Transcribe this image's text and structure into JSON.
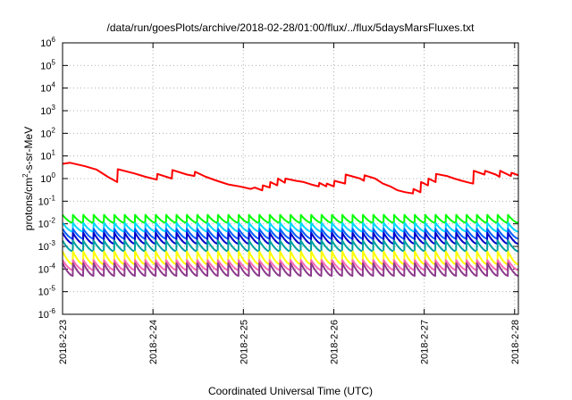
{
  "chart_data": {
    "type": "line",
    "title": "/data/run/goesPlots/archive/2018-02-28/01:00/flux/../flux/5daysMarsFluxes.txt",
    "xlabel": "Coordinated Universal Time (UTC)",
    "ylabel": {
      "prefix": "protons/cm",
      "sup": "2",
      "suffix": "-s-sr-MeV"
    },
    "yscale": "log",
    "ylim": [
      1e-06,
      1000000.0
    ],
    "y_ticks": [
      {
        "exp": -6
      },
      {
        "exp": -5
      },
      {
        "exp": -4
      },
      {
        "exp": -3
      },
      {
        "exp": -2
      },
      {
        "exp": -1
      },
      {
        "exp": 0
      },
      {
        "exp": 1
      },
      {
        "exp": 2
      },
      {
        "exp": 3
      },
      {
        "exp": 4
      },
      {
        "exp": 5
      },
      {
        "exp": 6
      }
    ],
    "y_tick_base": "10",
    "xlim": [
      "2018-02-23",
      "2018-02-28T01:00"
    ],
    "x_ticks": [
      "2018-2-23",
      "2018-2-24",
      "2018-2-25",
      "2018-2-26",
      "2018-2-27",
      "2018-2-28"
    ],
    "grid": true,
    "series": [
      {
        "color": "#ff0000",
        "values": [
          [
            "2018-02-23T00:00",
            4.5
          ],
          [
            "2018-02-23T02:00",
            5.0
          ],
          [
            "2018-02-23T06:00",
            3.5
          ],
          [
            "2018-02-23T09:00",
            2.5
          ],
          [
            "2018-02-23T12:00",
            1.2
          ],
          [
            "2018-02-23T14:30",
            0.7
          ],
          [
            "2018-02-23T14:40",
            2.6
          ],
          [
            "2018-02-23T19:00",
            1.7
          ],
          [
            "2018-02-23T22:00",
            1.2
          ],
          [
            "2018-02-24T01:00",
            0.9
          ],
          [
            "2018-02-24T01:10",
            1.6
          ],
          [
            "2018-02-24T05:00",
            1.0
          ],
          [
            "2018-02-24T05:10",
            2.4
          ],
          [
            "2018-02-24T09:00",
            1.5
          ],
          [
            "2018-02-24T11:00",
            1.3
          ],
          [
            "2018-02-24T11:10",
            2.0
          ],
          [
            "2018-02-24T14:00",
            1.2
          ],
          [
            "2018-02-24T17:00",
            0.8
          ],
          [
            "2018-02-24T20:00",
            0.55
          ],
          [
            "2018-02-24T23:00",
            0.45
          ],
          [
            "2018-02-25T02:00",
            0.35
          ],
          [
            "2018-02-25T03:00",
            0.4
          ],
          [
            "2018-02-25T05:00",
            0.3
          ],
          [
            "2018-02-25T05:10",
            0.5
          ],
          [
            "2018-02-25T07:00",
            0.4
          ],
          [
            "2018-02-25T07:10",
            0.7
          ],
          [
            "2018-02-25T09:00",
            0.5
          ],
          [
            "2018-02-25T09:10",
            1.0
          ],
          [
            "2018-02-25T11:00",
            0.65
          ],
          [
            "2018-02-25T11:10",
            1.0
          ],
          [
            "2018-02-25T14:00",
            0.8
          ],
          [
            "2018-02-25T16:00",
            0.7
          ],
          [
            "2018-02-25T18:00",
            0.55
          ],
          [
            "2018-02-25T20:00",
            0.45
          ],
          [
            "2018-02-25T20:10",
            0.65
          ],
          [
            "2018-02-25T22:00",
            0.45
          ],
          [
            "2018-02-25T22:10",
            0.6
          ],
          [
            "2018-02-26T00:00",
            0.45
          ],
          [
            "2018-02-26T00:10",
            0.8
          ],
          [
            "2018-02-26T03:00",
            0.6
          ],
          [
            "2018-02-26T03:10",
            1.5
          ],
          [
            "2018-02-26T07:00",
            1.0
          ],
          [
            "2018-02-26T08:00",
            0.8
          ],
          [
            "2018-02-26T08:10",
            1.4
          ],
          [
            "2018-02-26T11:00",
            1.0
          ],
          [
            "2018-02-26T13:00",
            0.6
          ],
          [
            "2018-02-26T15:00",
            0.45
          ],
          [
            "2018-02-26T17:00",
            0.3
          ],
          [
            "2018-02-26T19:00",
            0.25
          ],
          [
            "2018-02-26T21:00",
            0.22
          ],
          [
            "2018-02-26T21:10",
            0.35
          ],
          [
            "2018-02-26T23:00",
            0.25
          ],
          [
            "2018-02-26T23:10",
            0.7
          ],
          [
            "2018-02-27T01:00",
            0.5
          ],
          [
            "2018-02-27T01:10",
            1.0
          ],
          [
            "2018-02-27T03:00",
            0.7
          ],
          [
            "2018-02-27T03:10",
            1.6
          ],
          [
            "2018-02-27T06:00",
            1.3
          ],
          [
            "2018-02-27T08:00",
            1.0
          ],
          [
            "2018-02-27T10:00",
            0.8
          ],
          [
            "2018-02-27T12:00",
            0.65
          ],
          [
            "2018-02-27T13:00",
            0.6
          ],
          [
            "2018-02-27T13:10",
            2.2
          ],
          [
            "2018-02-27T16:00",
            1.5
          ],
          [
            "2018-02-27T16:10",
            2.2
          ],
          [
            "2018-02-27T19:00",
            1.5
          ],
          [
            "2018-02-27T20:00",
            1.2
          ],
          [
            "2018-02-27T20:10",
            2.2
          ],
          [
            "2018-02-27T23:00",
            1.3
          ],
          [
            "2018-02-27T23:10",
            1.8
          ],
          [
            "2018-02-28T01:00",
            1.4
          ]
        ]
      },
      {
        "color": "#00ff00",
        "peak": 0.025,
        "trough": 0.011
      },
      {
        "color": "#00d8ff",
        "peak": 0.011,
        "trough": 0.0045
      },
      {
        "color": "#0060ff",
        "peak": 0.006,
        "trough": 0.0022
      },
      {
        "color": "#0000c8",
        "peak": 0.004,
        "trough": 0.0013
      },
      {
        "color": "#00a0a0",
        "peak": 0.0018,
        "trough": 0.0006
      },
      {
        "color": "#ffff00",
        "peak": 0.0006,
        "trough": 0.00016
      },
      {
        "color": "#ff69b4",
        "peak": 0.00025,
        "trough": 9e-05
      },
      {
        "color": "#8b3a8b",
        "peak": 0.00018,
        "trough": 5e-05
      }
    ],
    "sawtooth_cycles": 44
  }
}
